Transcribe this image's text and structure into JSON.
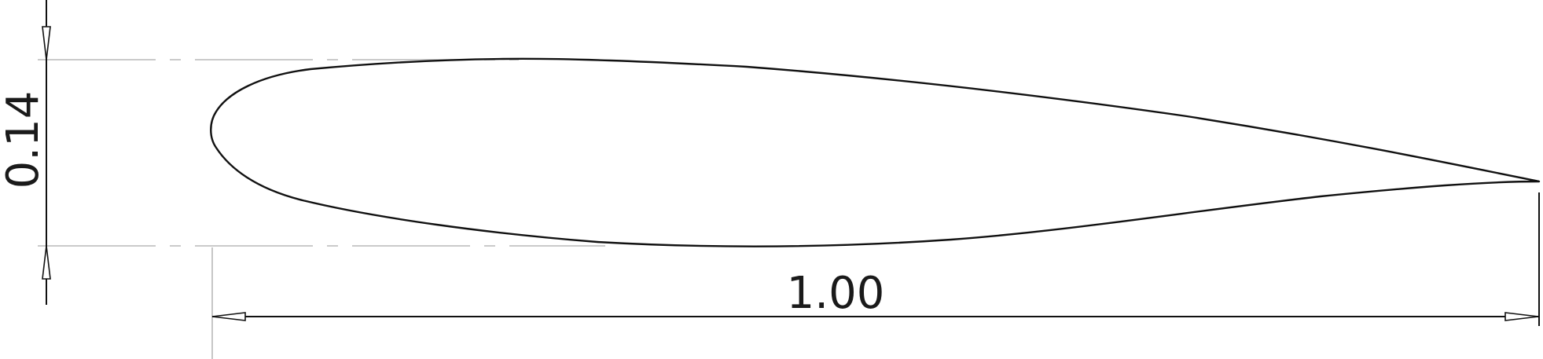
{
  "drawing": {
    "thickness_label": "0.14",
    "chord_label": "1.00",
    "line_color": "#111111",
    "extension_line_color": "#b8b8b8",
    "background": "#ffffff"
  }
}
